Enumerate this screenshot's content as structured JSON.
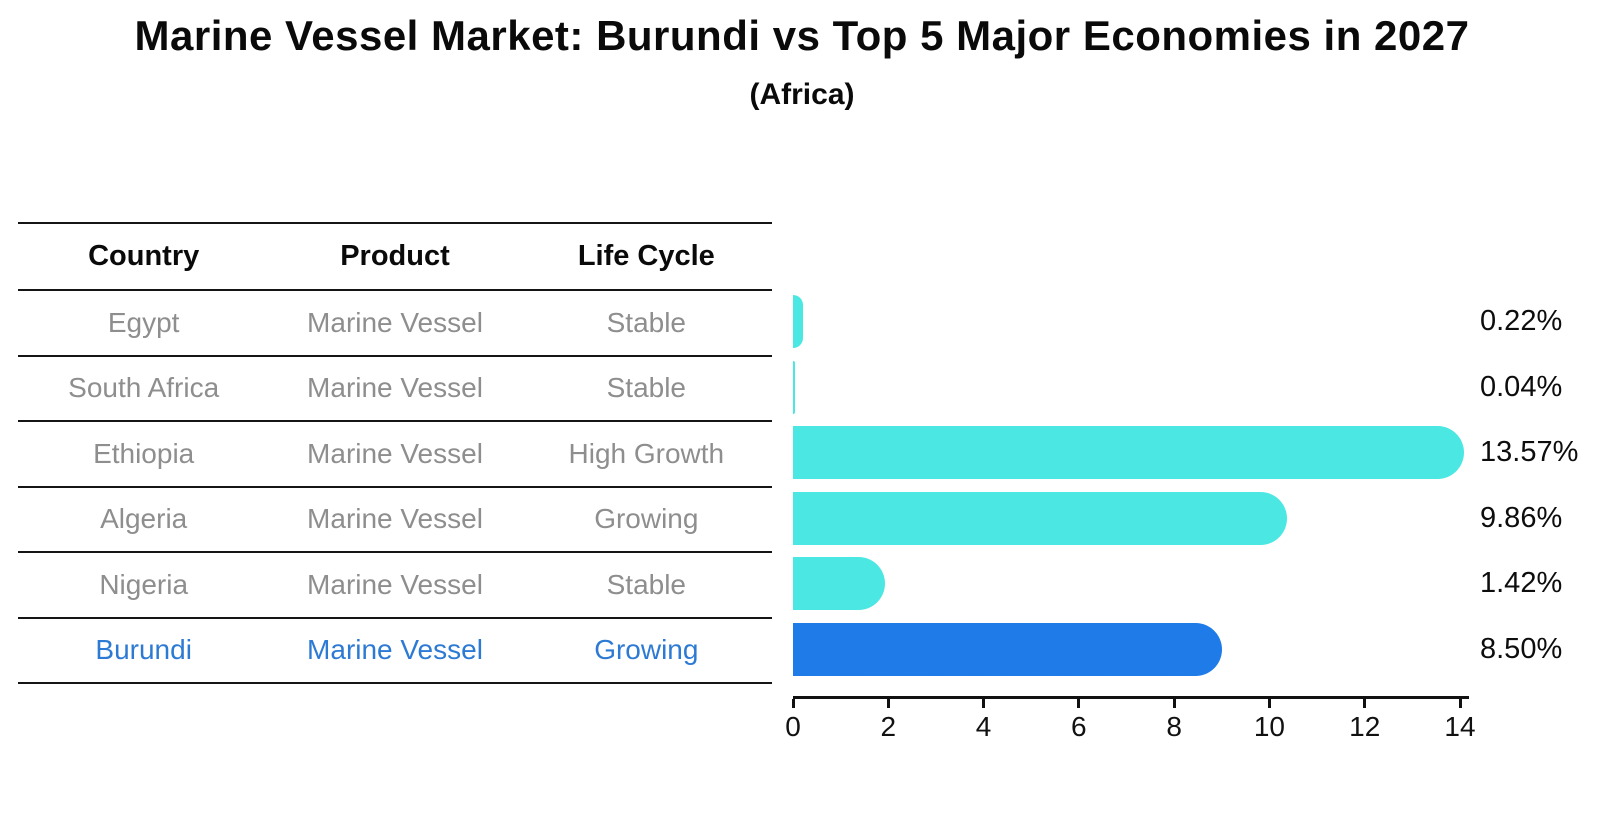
{
  "title": "Marine Vessel Market: Burundi vs Top 5 Major Economies in 2027",
  "subtitle": "(Africa)",
  "table": {
    "headers": [
      "Country",
      "Product",
      "Life Cycle"
    ],
    "rows": [
      {
        "country": "Egypt",
        "product": "Marine Vessel",
        "life_cycle": "Stable",
        "highlight": false
      },
      {
        "country": "South Africa",
        "product": "Marine Vessel",
        "life_cycle": "Stable",
        "highlight": false
      },
      {
        "country": "Ethiopia",
        "product": "Marine Vessel",
        "life_cycle": "High Growth",
        "highlight": false
      },
      {
        "country": "Algeria",
        "product": "Marine Vessel",
        "life_cycle": "Growing",
        "highlight": false
      },
      {
        "country": "Nigeria",
        "product": "Marine Vessel",
        "life_cycle": "Stable",
        "highlight": false
      },
      {
        "country": "Burundi",
        "product": "Marine Vessel",
        "life_cycle": "Growing",
        "highlight": true
      }
    ]
  },
  "chart_data": {
    "type": "bar",
    "orientation": "horizontal",
    "title": "Marine Vessel Market: Burundi vs Top 5 Major Economies in 2027",
    "subtitle": "(Africa)",
    "categories": [
      "Egypt",
      "South Africa",
      "Ethiopia",
      "Algeria",
      "Nigeria",
      "Burundi"
    ],
    "values": [
      0.22,
      0.04,
      13.57,
      9.86,
      1.42,
      8.5
    ],
    "value_labels": [
      "0.22%",
      "0.04%",
      "13.57%",
      "9.86%",
      "1.42%",
      "8.50%"
    ],
    "xlabel": "",
    "ylabel": "",
    "xlim": [
      0,
      14
    ],
    "x_ticks": [
      0,
      2,
      4,
      6,
      8,
      10,
      12,
      14
    ],
    "grid": false,
    "legend": false,
    "highlight_index": 5
  },
  "colors": {
    "bar": "#4AE7E3",
    "highlight_bar": "#1E7BE8",
    "highlight_text": "#2d7ad4",
    "text": "#0a0a0a",
    "muted_text": "#8e8e8e",
    "axis": "#111111"
  }
}
